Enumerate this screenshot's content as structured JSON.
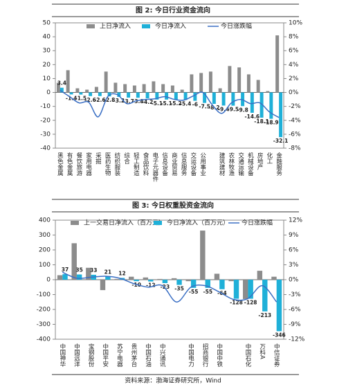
{
  "chart_data": [
    {
      "type": "bar-line",
      "title": "图 2: 今日行业资金流向",
      "categories": [
        "黑色金属",
        "有色金属",
        "餐饮旅游",
        "家用电器",
        "采掘",
        "医药生物",
        "纺织服装",
        "综合",
        "轻工制造",
        "食品饮料",
        "电子元器件",
        "信息设备",
        "商业贸易",
        "信息服务",
        "交运设备",
        "公用事业",
        null,
        "建筑建材",
        "农林牧渔",
        "交通运输",
        "机械设备",
        "房地产",
        "化工",
        "金融服务"
      ],
      "series": [
        {
          "name": "上日净流入",
          "color": "#8c8c8c",
          "values": [
            7,
            16,
            3,
            2,
            4,
            15,
            7,
            6,
            5,
            6,
            8,
            6,
            5,
            2,
            13,
            14,
            15,
            3,
            19,
            18,
            13,
            9,
            1,
            41
          ]
        },
        {
          "name": "今日净流入",
          "color": "#1fb0d8",
          "values": [
            3.4,
            -1.4,
            -1.5,
            -2.6,
            -2.6,
            -2.8,
            -3.2,
            -3.7,
            -3.8,
            -4.2,
            -5.1,
            -5.1,
            -5.2,
            -5.4,
            -6.0,
            -7.5,
            -8.2,
            -9.4,
            -9.5,
            -9.8,
            -14.6,
            -18.1,
            -18.9,
            -32.1
          ]
        },
        {
          "name": "今日涨跌幅",
          "color": "#3a6fc4",
          "axis": "y2",
          "values": [
            0.3,
            -0.6,
            -1.5,
            -1.4,
            -3.5,
            -0.6,
            -0.3,
            -1.6,
            -1.2,
            -1.0,
            -0.9,
            -0.6,
            -1.0,
            -1.1,
            -0.5,
            0.0,
            -1.8,
            -3.0,
            -1.5,
            -1.0,
            -1.6,
            -1.5,
            -2.8,
            -3.6
          ]
        }
      ],
      "ylim": [
        -40,
        50
      ],
      "yticks": [
        -40,
        -30,
        -20,
        -10,
        0,
        10,
        20,
        30,
        40,
        50
      ],
      "y2lim": [
        -8,
        10
      ],
      "y2ticks": [
        {
          "value": -8,
          "label": "-8%"
        },
        {
          "value": -6,
          "label": "-6%"
        },
        {
          "value": -4,
          "label": "-4%"
        },
        {
          "value": -2,
          "label": "-2%"
        },
        {
          "value": 0,
          "label": "0%"
        },
        {
          "value": 2,
          "label": "2%"
        },
        {
          "value": 4,
          "label": "4%"
        },
        {
          "value": 6,
          "label": "6%"
        },
        {
          "value": 8,
          "label": "8%"
        },
        {
          "value": 10,
          "label": "10%"
        }
      ]
    },
    {
      "type": "bar-line",
      "title": "图 3: 今日权重股资金流向",
      "categories": [
        "中国神华",
        "中国远洋",
        "宝钢股份",
        "中国平安",
        "苏宁电器",
        "贵州茅台",
        "中国石油",
        "中兴通讯",
        null,
        "中国电力",
        "招商银行",
        "中国中铁",
        null,
        "中国石化",
        "万科A",
        "中信证券"
      ],
      "series": [
        {
          "name": "上一交易日净流入（百万元）",
          "color": "#8c8c8c",
          "values": [
            30,
            245,
            80,
            -70,
            5,
            20,
            15,
            5,
            10,
            -10,
            330,
            40,
            -10,
            -130,
            60,
            20
          ]
        },
        {
          "name": "今日净流入（百万元）",
          "color": "#1fb0d8",
          "values": [
            37,
            35,
            33,
            21,
            12,
            -10,
            -12,
            -23,
            -35,
            -55,
            -55,
            -64,
            -128,
            -128,
            -213,
            -346
          ]
        },
        {
          "name": "今日涨跌幅",
          "color": "#3a6fc4",
          "axis": "y2",
          "values": [
            1.5,
            0.3,
            0.5,
            0.7,
            0.3,
            -0.8,
            -1.5,
            -1.2,
            -4.5,
            -1.5,
            -1.2,
            -2.5,
            -4.0,
            -3.8,
            -1.2,
            -4.5
          ]
        }
      ],
      "ylim": [
        -400,
        400
      ],
      "yticks": [
        -400,
        -300,
        -200,
        -100,
        0,
        100,
        200,
        300,
        400
      ],
      "y2lim": [
        -12,
        12
      ],
      "y2ticks": [
        {
          "value": -12,
          "label": "-12%"
        },
        {
          "value": -9,
          "label": "-9%"
        },
        {
          "value": -6,
          "label": "-6%"
        },
        {
          "value": -3,
          "label": "-3%"
        },
        {
          "value": 0,
          "label": "0%"
        },
        {
          "value": 3,
          "label": "3%"
        },
        {
          "value": 6,
          "label": "6%"
        },
        {
          "value": 9,
          "label": "9%"
        },
        {
          "value": 12,
          "label": "12%"
        }
      ]
    }
  ],
  "footer": {
    "source": "资料来源：渤海证券研究所，Wind"
  }
}
